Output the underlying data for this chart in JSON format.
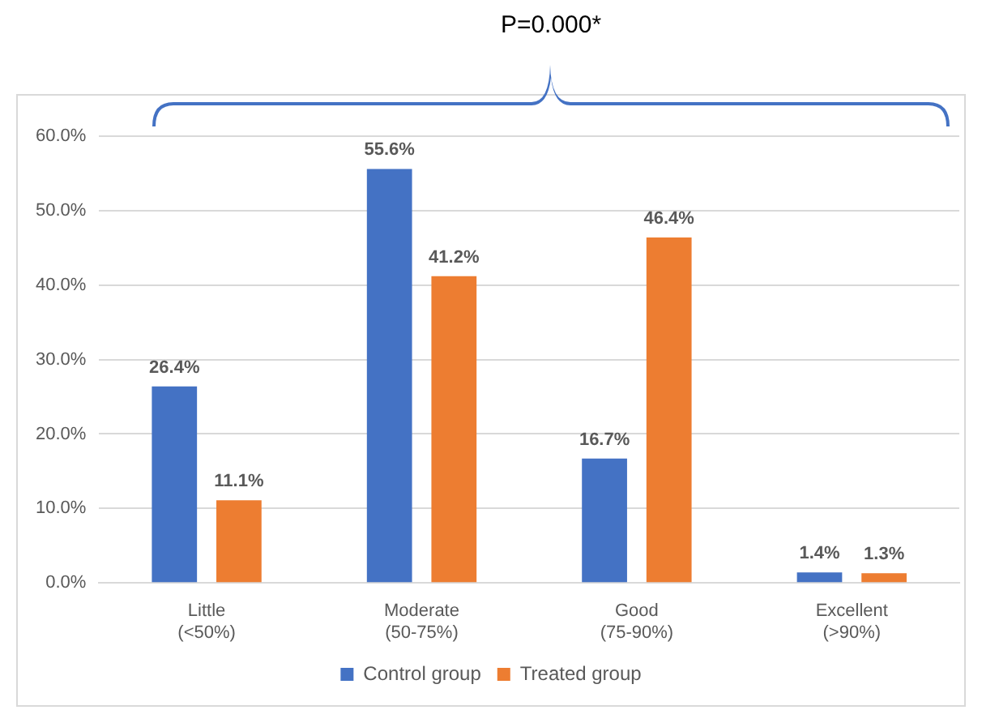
{
  "chart_data": {
    "type": "bar",
    "categories": [
      "Little\n(<50%)",
      "Moderate\n(50-75%)",
      "Good\n(75-90%)",
      "Excellent\n(>90%)"
    ],
    "series": [
      {
        "name": "Control group",
        "color": "#4472c4",
        "values": [
          26.4,
          55.6,
          16.7,
          1.4
        ],
        "value_labels": [
          "26.4%",
          "55.6%",
          "16.7%",
          "1.4%"
        ]
      },
      {
        "name": "Treated group",
        "color": "#ed7d31",
        "values": [
          11.1,
          41.2,
          46.4,
          1.3
        ],
        "value_labels": [
          "11.1%",
          "41.2%",
          "46.4%",
          "1.3%"
        ]
      }
    ],
    "ylim": [
      0,
      60
    ],
    "yticks": [
      {
        "value": 0,
        "label": "0.0%"
      },
      {
        "value": 10,
        "label": "10.0%"
      },
      {
        "value": 20,
        "label": "20.0%"
      },
      {
        "value": 30,
        "label": "30.0%"
      },
      {
        "value": 40,
        "label": "40.0%"
      },
      {
        "value": 50,
        "label": "50.0%"
      },
      {
        "value": 60,
        "label": "60.0%"
      }
    ],
    "grid": "y",
    "legend": "bottom",
    "annotations": [
      "P=0.000*"
    ]
  }
}
